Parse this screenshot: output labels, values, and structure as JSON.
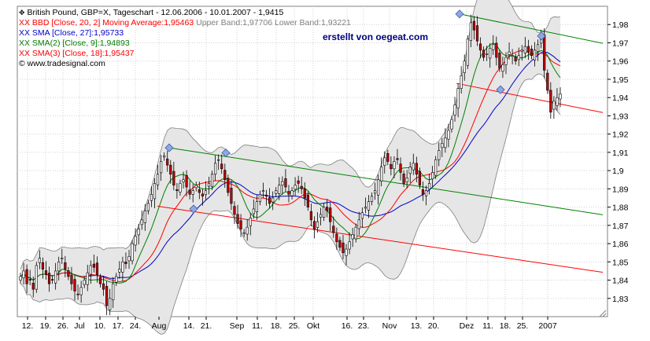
{
  "legend": {
    "title_prefix": "British Pound, GBP=X, Tageschart - 12.06.2006 - 10.01.2007 - ",
    "title_value": "1,9415",
    "bbd_label": "XX BBD [Close, 20, 2] Moving Average:",
    "bbd_ma": "1,95463",
    "bbd_upper_label": " Upper Band:",
    "bbd_upper": "1,97706",
    "bbd_lower_label": " Lower Band:",
    "bbd_lower": "1,93221",
    "sma_label": "XX SMA [Close, 27]:",
    "sma_value": "1,95733",
    "sma2_label": "XX SMA(2) [Close, 9]:",
    "sma2_value": "1,94893",
    "sma3_label": "XX SMA(3) [Close, 18]:",
    "sma3_value": "1,95437",
    "copyright": "© www.tradesignal.com"
  },
  "watermark": "erstellt von oegeat.com",
  "colors": {
    "bbd": "#ff0000",
    "sma": "#0000cc",
    "sma2": "#008000",
    "sma3": "#ff0000",
    "band_fill": "#e6e6e6",
    "band_line": "#7f7f7f",
    "candle_up": "#ffffff",
    "candle_down": "#c00000",
    "channel_green": "#008000",
    "channel_red": "#ff0000",
    "marker": "#8ea7e6"
  },
  "chart_data": {
    "type": "candlestick",
    "ylim": [
      1.82,
      1.99
    ],
    "y_ticks": [
      "1,98",
      "1,97",
      "1,96",
      "1,95",
      "1,94",
      "1,93",
      "1,92",
      "1,91",
      "1,9",
      "1,89",
      "1,88",
      "1,87",
      "1,86",
      "1,85",
      "1,84",
      "1,83"
    ],
    "y_tick_values": [
      1.98,
      1.97,
      1.96,
      1.95,
      1.94,
      1.93,
      1.92,
      1.91,
      1.9,
      1.89,
      1.88,
      1.87,
      1.86,
      1.85,
      1.84,
      1.83
    ],
    "x_ticks": [
      "12.",
      "19.",
      "26.",
      "Jul",
      "10.",
      "17.",
      "24.",
      "Aug",
      "14.",
      "21.",
      "Sep",
      "11.",
      "18.",
      "25.",
      "Okt",
      "16.",
      "23.",
      "Nov",
      "13.",
      "20.",
      "Dez",
      "11.",
      "18.",
      "25.",
      "2007"
    ],
    "close_series": [
      1.842,
      1.845,
      1.838,
      1.84,
      1.835,
      1.848,
      1.852,
      1.846,
      1.843,
      1.838,
      1.84,
      1.845,
      1.85,
      1.852,
      1.846,
      1.842,
      1.838,
      1.834,
      1.832,
      1.836,
      1.84,
      1.844,
      1.848,
      1.847,
      1.843,
      1.838,
      1.835,
      1.826,
      1.83,
      1.838,
      1.842,
      1.846,
      1.85,
      1.849,
      1.853,
      1.86,
      1.864,
      1.868,
      1.873,
      1.878,
      1.882,
      1.887,
      1.893,
      1.898,
      1.905,
      1.908,
      1.903,
      1.898,
      1.892,
      1.889,
      1.893,
      1.895,
      1.891,
      1.887,
      1.889,
      1.892,
      1.888,
      1.886,
      1.889,
      1.893,
      1.898,
      1.904,
      1.906,
      1.901,
      1.895,
      1.888,
      1.882,
      1.876,
      1.871,
      1.868,
      1.866,
      1.869,
      1.874,
      1.879,
      1.883,
      1.887,
      1.889,
      1.886,
      1.882,
      1.885,
      1.889,
      1.892,
      1.894,
      1.891,
      1.887,
      1.889,
      1.892,
      1.893,
      1.89,
      1.885,
      1.88,
      1.873,
      1.868,
      1.872,
      1.876,
      1.88,
      1.878,
      1.872,
      1.866,
      1.861,
      1.858,
      1.855,
      1.857,
      1.861,
      1.865,
      1.869,
      1.873,
      1.877,
      1.88,
      1.883,
      1.886,
      1.889,
      1.895,
      1.902,
      1.907,
      1.905,
      1.901,
      1.905,
      1.906,
      1.899,
      1.893,
      1.896,
      1.902,
      1.904,
      1.898,
      1.892,
      1.887,
      1.889,
      1.893,
      1.899,
      1.906,
      1.911,
      1.915,
      1.918,
      1.922,
      1.928,
      1.936,
      1.945,
      1.952,
      1.96,
      1.972,
      1.981,
      1.977,
      1.971,
      1.966,
      1.962,
      1.964,
      1.967,
      1.969,
      1.962,
      1.956,
      1.958,
      1.962,
      1.965,
      1.963,
      1.96,
      1.963,
      1.966,
      1.968,
      1.965,
      1.963,
      1.966,
      1.969,
      1.972,
      1.955,
      1.944,
      1.932,
      1.938,
      1.94,
      1.942
    ]
  }
}
